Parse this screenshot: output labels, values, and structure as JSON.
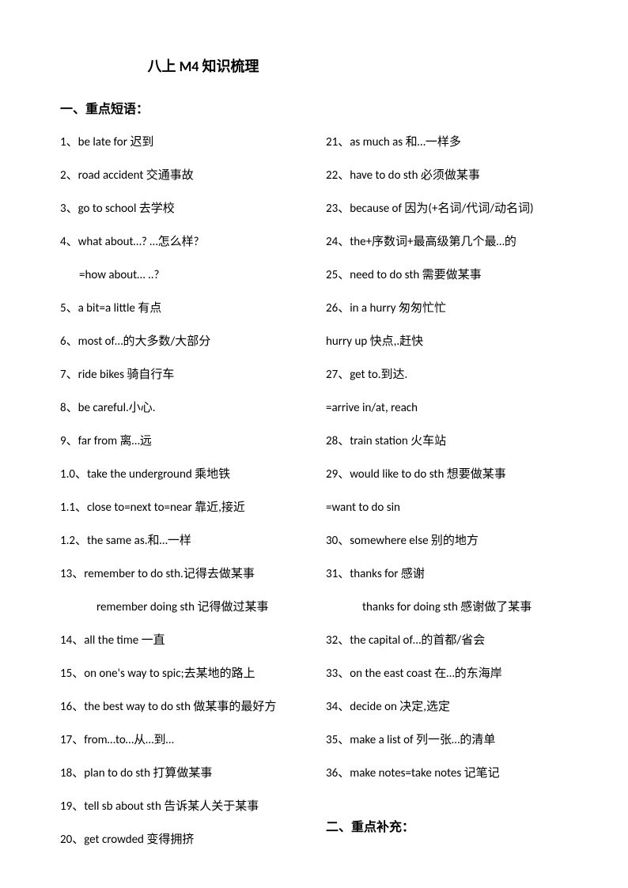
{
  "title": "八上 M4 知识梳理",
  "section1": "一、重点短语：",
  "section2": "二、重点补充：",
  "left": [
    {
      "text": "1、be late for 迟到",
      "indent": 0
    },
    {
      "text": "2、road accident  交通事故",
      "indent": 0
    },
    {
      "text": "3、go to school  去学校",
      "indent": 0
    },
    {
      "text": "4、what about…? …怎么样?",
      "indent": 0
    },
    {
      "text": "=how about… ..?",
      "indent": 1
    },
    {
      "text": "5、a bit=a little 有点",
      "indent": 0
    },
    {
      "text": "6、most of…的大多数/大部分",
      "indent": 0
    },
    {
      "text": "7、ride bikes 骑自行车",
      "indent": 0
    },
    {
      "text": "8、be careful.小心.",
      "indent": 0
    },
    {
      "text": "9、far from  离…远",
      "indent": 0
    },
    {
      "text": "1.0、take the underground 乘地铁",
      "indent": 0
    },
    {
      "text": "1.1、close to=next to=near 靠近,接近",
      "indent": 0
    },
    {
      "text": "1.2、the same as.和…一样",
      "indent": 0
    },
    {
      "text": "13、remember to do sth.记得去做某事",
      "indent": 0
    },
    {
      "text": "remember doing sth 记得做过某事",
      "indent": 2
    },
    {
      "text": "14、all the time 一直",
      "indent": 0
    },
    {
      "text": "15、on one's way to spic;去某地的路上",
      "indent": 0
    },
    {
      "text": "16、the best way to do sth 做某事的最好方",
      "indent": 0
    },
    {
      "text": "17、from…to…从…到…",
      "indent": 0
    },
    {
      "text": "18、plan to do sth 打算做某事",
      "indent": 0
    },
    {
      "text": "19、tell sb about sth 告诉某人关于某事",
      "indent": 0
    },
    {
      "text": "20、get crowded  变得拥挤",
      "indent": 0
    }
  ],
  "right": [
    {
      "text": "21、as much as 和…一样多",
      "indent": 0
    },
    {
      "text": "22、have to do sth 必须做某事",
      "indent": 0
    },
    {
      "text": "23、because of 因为(+名词/代词/动名词)",
      "indent": 0
    },
    {
      "text": "24、the+序数词+最高级第几个最…的",
      "indent": 0
    },
    {
      "text": "25、need to do sth 需要做某事",
      "indent": 0
    },
    {
      "text": "26、in a hurry  匆匆忙忙",
      "indent": 0
    },
    {
      "text": "hurry up  快点,.赶快",
      "indent": 0
    },
    {
      "text": "27、get to.到达.",
      "indent": 0
    },
    {
      "text": "=arrive in/at, reach",
      "indent": 0
    },
    {
      "text": "28、train station  火车站",
      "indent": 0
    },
    {
      "text": "29、would like to do sth 想要做某事",
      "indent": 0
    },
    {
      "text": "=want to do sin",
      "indent": 0
    },
    {
      "text": "30、somewhere else  别的地方",
      "indent": 0
    },
    {
      "text": "31、thanks for  感谢",
      "indent": 0
    },
    {
      "text": "thanks for doing sth 感谢做了某事",
      "indent": 2
    },
    {
      "text": "32、the capital of…的首都/省会",
      "indent": 0
    },
    {
      "text": "33、on the east coast  在…的东海岸",
      "indent": 0
    },
    {
      "text": "34、decide on 决定,选定",
      "indent": 0
    },
    {
      "text": "35、make a list of  列一张…的清单",
      "indent": 0
    },
    {
      "text": "36、make notes=take notes 记笔记",
      "indent": 0
    }
  ]
}
